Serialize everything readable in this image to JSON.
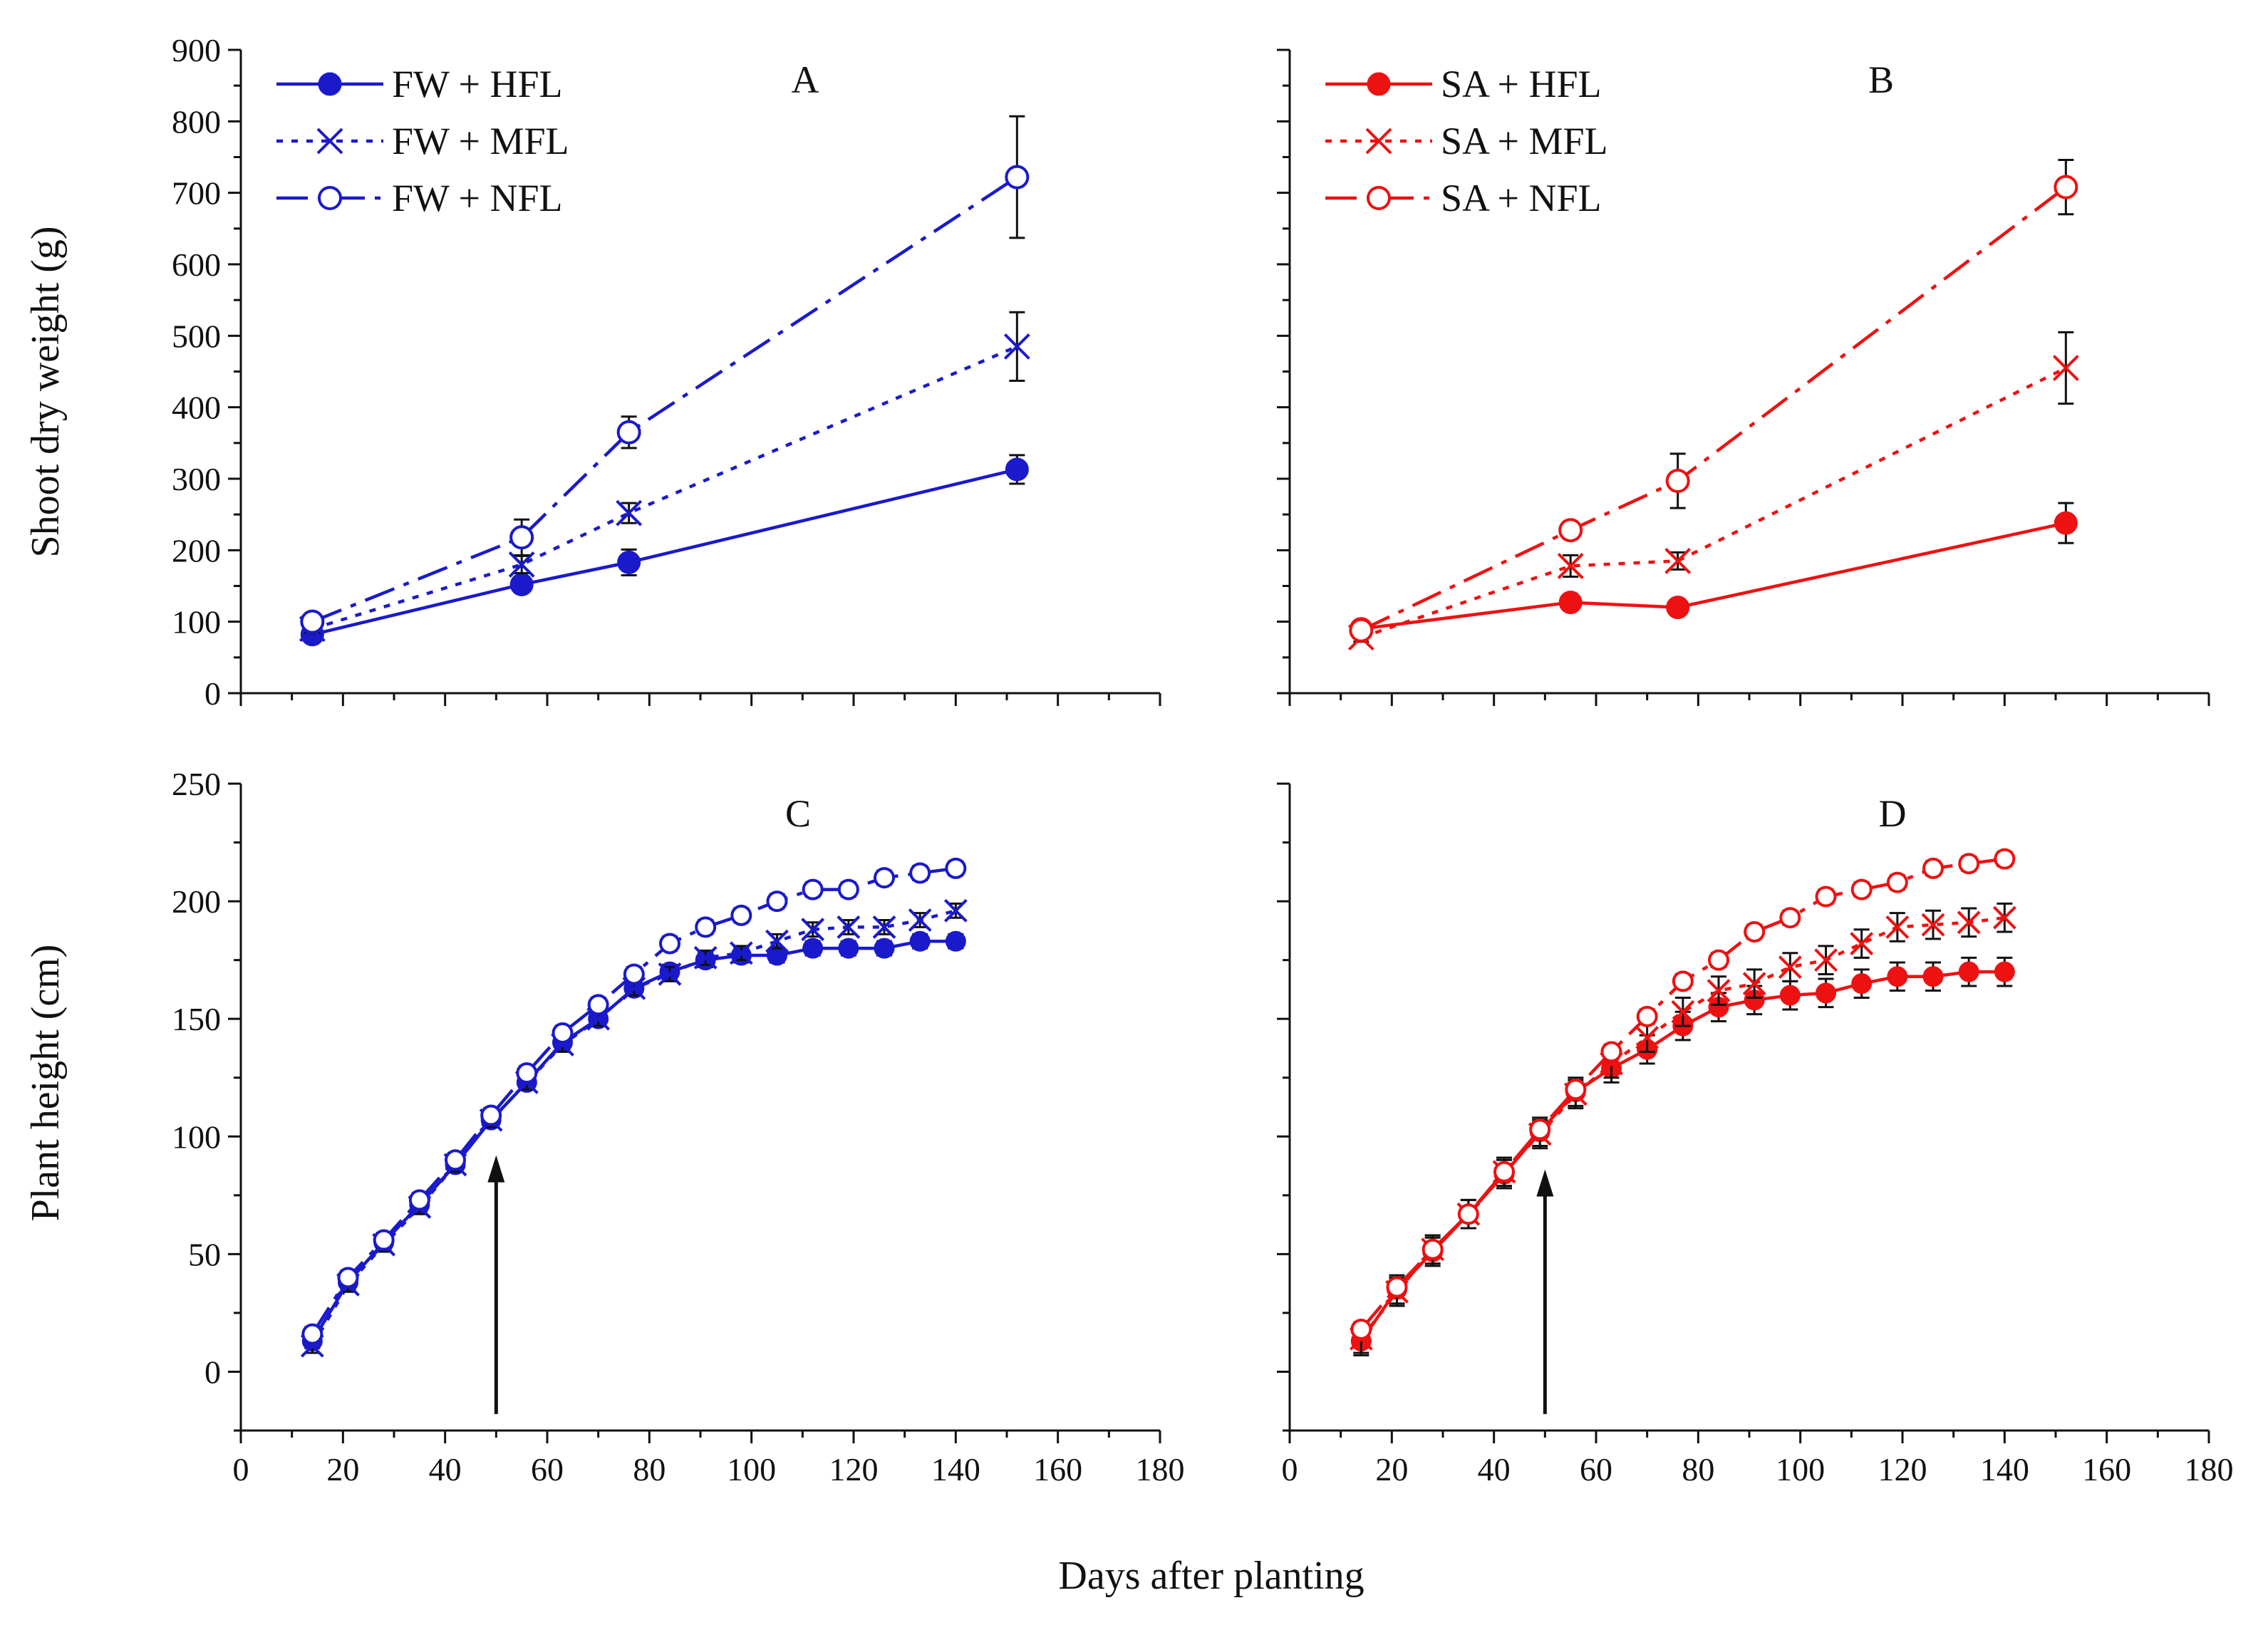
{
  "figure": {
    "xlabel": "Days after planting",
    "top_ylabel": "Shoot dry weight (g)",
    "bottom_ylabel": "Plant height (cm)"
  },
  "colors": {
    "blue": "#1a1acc",
    "red": "#ee1111",
    "black": "#111111"
  },
  "chart_data": [
    {
      "id": "A",
      "type": "line",
      "title": "A",
      "xlabel": "",
      "ylabel": "Shoot dry weight (g)",
      "xlim": [
        0,
        180
      ],
      "ylim": [
        0,
        900
      ],
      "xticks": [],
      "yticks": [
        0,
        100,
        200,
        300,
        400,
        500,
        600,
        700,
        800,
        900
      ],
      "color": "blue",
      "legend": "top-left",
      "series": [
        {
          "name": "FW + HFL",
          "style": "solid",
          "marker": "filled-circle",
          "x": [
            14,
            55,
            76,
            152
          ],
          "y": [
            82,
            152,
            183,
            313
          ],
          "err": [
            6,
            8,
            18,
            20
          ]
        },
        {
          "name": "FW + MFL",
          "style": "dotted",
          "marker": "cross",
          "x": [
            14,
            55,
            76,
            152
          ],
          "y": [
            90,
            180,
            252,
            485
          ],
          "err": [
            6,
            12,
            14,
            48
          ]
        },
        {
          "name": "FW + NFL",
          "style": "dashdot",
          "marker": "open-circle",
          "x": [
            14,
            55,
            76,
            152
          ],
          "y": [
            100,
            218,
            365,
            722
          ],
          "err": [
            6,
            25,
            22,
            85
          ]
        }
      ]
    },
    {
      "id": "B",
      "type": "line",
      "title": "B",
      "xlabel": "",
      "ylabel": "",
      "xlim": [
        0,
        180
      ],
      "ylim": [
        0,
        900
      ],
      "xticks": [],
      "yticks": [],
      "color": "red",
      "legend": "top-left",
      "series": [
        {
          "name": "SA + HFL",
          "style": "solid",
          "marker": "filled-circle",
          "x": [
            14,
            55,
            76,
            152
          ],
          "y": [
            90,
            127,
            120,
            238
          ],
          "err": [
            8,
            8,
            8,
            28
          ]
        },
        {
          "name": "SA + MFL",
          "style": "dotted",
          "marker": "cross",
          "x": [
            14,
            55,
            76,
            152
          ],
          "y": [
            78,
            178,
            185,
            455
          ],
          "err": [
            6,
            15,
            12,
            50
          ]
        },
        {
          "name": "SA + NFL",
          "style": "dashdot",
          "marker": "open-circle",
          "x": [
            14,
            55,
            76,
            152
          ],
          "y": [
            88,
            228,
            297,
            708
          ],
          "err": [
            6,
            12,
            38,
            38
          ]
        }
      ]
    },
    {
      "id": "C",
      "type": "line",
      "title": "C",
      "xlabel": "Days after planting",
      "ylabel": "Plant height (cm)",
      "xlim": [
        0,
        180
      ],
      "ylim": [
        -25,
        250
      ],
      "xticks": [
        0,
        20,
        40,
        60,
        80,
        100,
        120,
        140,
        160,
        180
      ],
      "yticks": [
        0,
        50,
        100,
        150,
        200,
        250
      ],
      "color": "blue",
      "legend": "none",
      "arrow": {
        "x": 50,
        "y_from": -18,
        "y_to": 92
      },
      "series": [
        {
          "name": "FW + HFL",
          "style": "solid",
          "marker": "filled-circle",
          "x": [
            14,
            21,
            28,
            35,
            42,
            49,
            56,
            63,
            70,
            77,
            84,
            91,
            98,
            105,
            112,
            119,
            126,
            133,
            140
          ],
          "y": [
            13,
            38,
            55,
            71,
            88,
            107,
            123,
            140,
            150,
            163,
            170,
            175,
            177,
            177,
            180,
            180,
            180,
            183,
            183
          ],
          "err": 3
        },
        {
          "name": "FW + MFL",
          "style": "dotted",
          "marker": "cross",
          "x": [
            14,
            21,
            28,
            35,
            42,
            49,
            56,
            63,
            70,
            77,
            84,
            91,
            98,
            105,
            112,
            119,
            126,
            133,
            140
          ],
          "y": [
            11,
            37,
            54,
            70,
            88,
            107,
            123,
            139,
            150,
            163,
            169,
            176,
            178,
            183,
            188,
            189,
            189,
            192,
            196
          ],
          "err": 3
        },
        {
          "name": "FW + NFL",
          "style": "dashdot",
          "marker": "open-circle",
          "x": [
            14,
            21,
            28,
            35,
            42,
            49,
            56,
            63,
            70,
            77,
            84,
            91,
            98,
            105,
            112,
            119,
            126,
            133,
            140
          ],
          "y": [
            16,
            40,
            56,
            73,
            90,
            109,
            127,
            144,
            156,
            169,
            182,
            189,
            194,
            200,
            205,
            205,
            210,
            212,
            214
          ],
          "err": 3
        }
      ]
    },
    {
      "id": "D",
      "type": "line",
      "title": "D",
      "xlabel": "Days after planting",
      "ylabel": "",
      "xlim": [
        0,
        180
      ],
      "ylim": [
        -25,
        250
      ],
      "xticks": [
        0,
        20,
        40,
        60,
        80,
        100,
        120,
        140,
        160,
        180
      ],
      "yticks": [],
      "color": "red",
      "legend": "none",
      "arrow": {
        "x": 50,
        "y_from": -18,
        "y_to": 86
      },
      "series": [
        {
          "name": "SA + HFL",
          "style": "solid",
          "marker": "filled-circle",
          "x": [
            14,
            21,
            28,
            35,
            42,
            49,
            56,
            63,
            70,
            77,
            84,
            91,
            98,
            105,
            112,
            119,
            126,
            133,
            140
          ],
          "y": [
            13,
            35,
            51,
            67,
            84,
            102,
            119,
            129,
            137,
            147,
            155,
            158,
            160,
            161,
            165,
            168,
            168,
            170,
            170
          ],
          "err": 6
        },
        {
          "name": "SA + MFL",
          "style": "dotted",
          "marker": "cross",
          "x": [
            14,
            21,
            28,
            35,
            42,
            49,
            56,
            63,
            70,
            77,
            84,
            91,
            98,
            105,
            112,
            119,
            126,
            133,
            140
          ],
          "y": [
            14,
            34,
            52,
            67,
            85,
            101,
            118,
            131,
            142,
            153,
            162,
            165,
            172,
            175,
            182,
            189,
            190,
            191,
            193
          ],
          "err": 6
        },
        {
          "name": "SA + NFL",
          "style": "dashdot",
          "marker": "open-circle",
          "x": [
            14,
            21,
            28,
            35,
            42,
            49,
            56,
            63,
            70,
            77,
            84,
            91,
            98,
            105,
            112,
            119,
            126,
            133,
            140
          ],
          "y": [
            18,
            36,
            52,
            67,
            85,
            103,
            120,
            136,
            151,
            166,
            175,
            187,
            193,
            202,
            205,
            208,
            214,
            216,
            218
          ],
          "err": 3
        }
      ]
    }
  ]
}
